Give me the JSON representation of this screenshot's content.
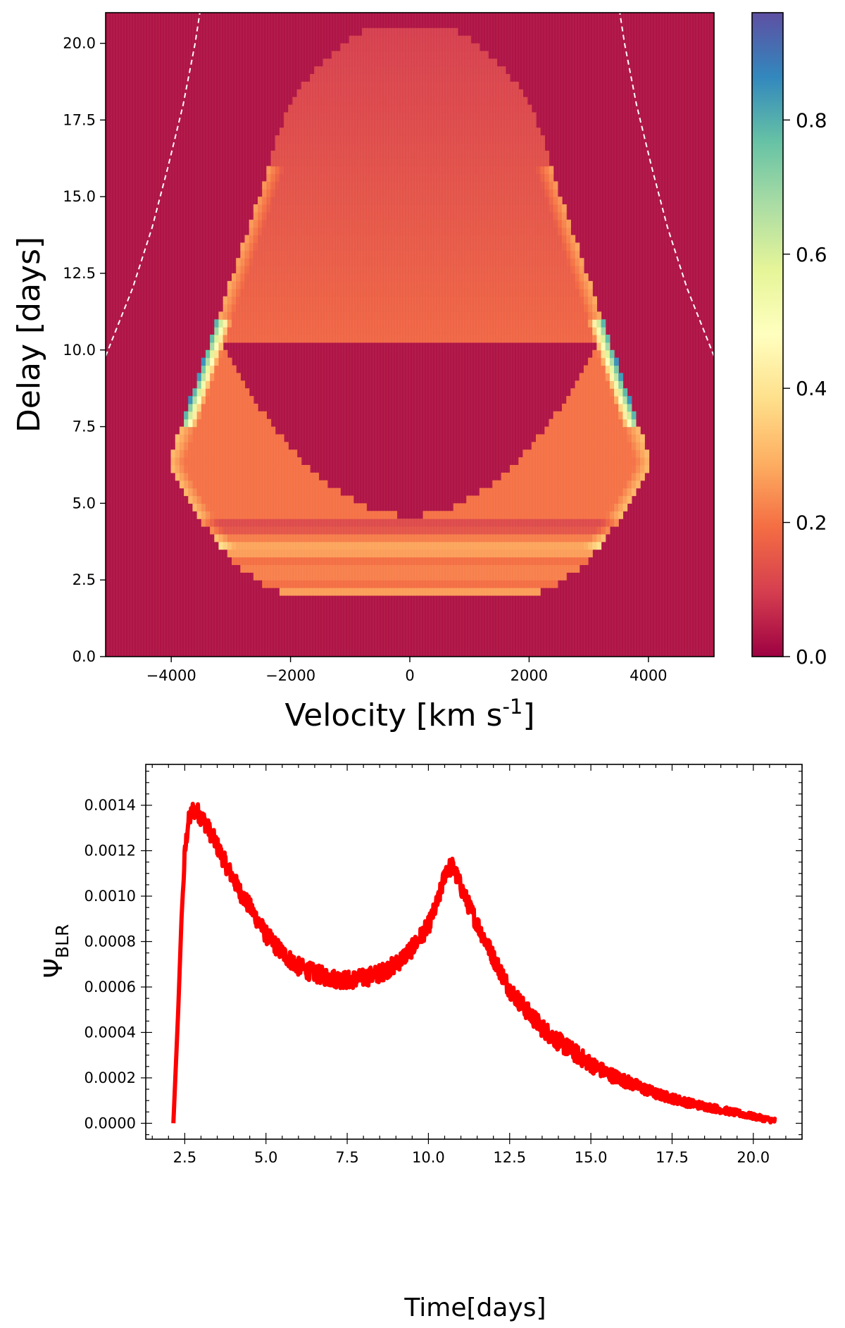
{
  "chart_data": [
    {
      "type": "heatmap",
      "name": "velocity-delay map",
      "xlabel": "Velocity [km s",
      "xlabel_sup": "-1",
      "xlabel_close": "]",
      "ylabel": "Delay [days]",
      "xlim": [
        -5100,
        5100
      ],
      "ylim": [
        0,
        21
      ],
      "xticks": [
        -4000,
        -2000,
        0,
        2000,
        4000
      ],
      "xtick_labels": [
        "−4000",
        "−2000",
        "0",
        "2000",
        "4000"
      ],
      "yticks": [
        0,
        2.5,
        5,
        7.5,
        10,
        12.5,
        15,
        17.5,
        20
      ],
      "ytick_labels": [
        "0.0",
        "2.5",
        "5.0",
        "7.5",
        "10.0",
        "12.5",
        "15.0",
        "17.5",
        "20.0"
      ],
      "colormap": "Spectral_r",
      "colorbar": {
        "range": [
          0,
          0.96
        ],
        "ticks": [
          0,
          0.2,
          0.4,
          0.6,
          0.8
        ],
        "tick_labels": [
          "0.0",
          "0.2",
          "0.4",
          "0.6",
          "0.8"
        ]
      },
      "structure": {
        "outer_region": {
          "delay_min": 2.0,
          "delay_max": 20.5,
          "max_velocity": 4050,
          "velocity_at_2_days": 1800,
          "widest_delay": 6.3
        },
        "inner_hole": {
          "delay_min": 4.6,
          "delay_max": 10.3,
          "half_width_at_top": 3200,
          "half_width_at_center": 1800
        },
        "bright_band_delay": [
          2.5,
          3.0
        ],
        "high_emission_edges": {
          "delay_range": [
            7.5,
            11.0
          ],
          "peak_value": 0.9
        }
      },
      "envelope_curve": {
        "style": "white dashed",
        "delay": [
          9.8,
          12,
          14,
          16,
          18,
          20,
          21
        ],
        "velocity": [
          5100,
          4650,
          4320,
          4050,
          3800,
          3600,
          3520
        ]
      }
    },
    {
      "type": "line",
      "name": "BLR transfer function",
      "xlabel": "Time[days]",
      "ylabel": "Ψ",
      "ylabel_sub": "BLR",
      "xlim": [
        1.3,
        21.5
      ],
      "ylim": [
        -7e-05,
        0.00158
      ],
      "xticks": [
        2.5,
        5,
        7.5,
        10,
        12.5,
        15,
        17.5,
        20
      ],
      "xtick_labels": [
        "2.5",
        "5.0",
        "7.5",
        "10.0",
        "12.5",
        "15.0",
        "17.5",
        "20.0"
      ],
      "yticks": [
        0,
        0.0002,
        0.0004,
        0.0006,
        0.0008,
        0.001,
        0.0012,
        0.0014
      ],
      "ytick_labels": [
        "0.0000",
        "0.0002",
        "0.0004",
        "0.0006",
        "0.0008",
        "0.0010",
        "0.0012",
        "0.0014"
      ],
      "series": [
        {
          "name": "Ψ_BLR",
          "color": "#ff0000",
          "x": [
            2.15,
            2.3,
            2.4,
            2.5,
            2.6,
            2.75,
            2.9,
            3.1,
            3.4,
            3.8,
            4.2,
            4.6,
            5.0,
            5.5,
            6.0,
            6.5,
            7.0,
            7.5,
            8.0,
            8.5,
            9.0,
            9.5,
            10.0,
            10.3,
            10.55,
            10.75,
            11.0,
            11.3,
            11.7,
            12.0,
            12.5,
            13.0,
            13.5,
            14.0,
            14.5,
            15.0,
            15.5,
            16.0,
            17.0,
            18.0,
            19.0,
            20.0,
            20.7
          ],
          "y": [
            0.0,
            0.0005,
            0.0009,
            0.00118,
            0.00132,
            0.00138,
            0.00137,
            0.00133,
            0.00125,
            0.00113,
            0.00102,
            0.00093,
            0.00083,
            0.00075,
            0.00069,
            0.00066,
            0.00064,
            0.00063,
            0.00064,
            0.00066,
            0.0007,
            0.00077,
            0.00087,
            0.00098,
            0.00112,
            0.00113,
            0.00104,
            0.00094,
            0.00082,
            0.00073,
            0.00059,
            0.0005,
            0.00042,
            0.00036,
            0.00031,
            0.00026,
            0.00022,
            0.00019,
            0.00013,
            9e-05,
            6e-05,
            3e-05,
            1e-05
          ],
          "noise_amplitude": 4e-05
        }
      ]
    }
  ]
}
